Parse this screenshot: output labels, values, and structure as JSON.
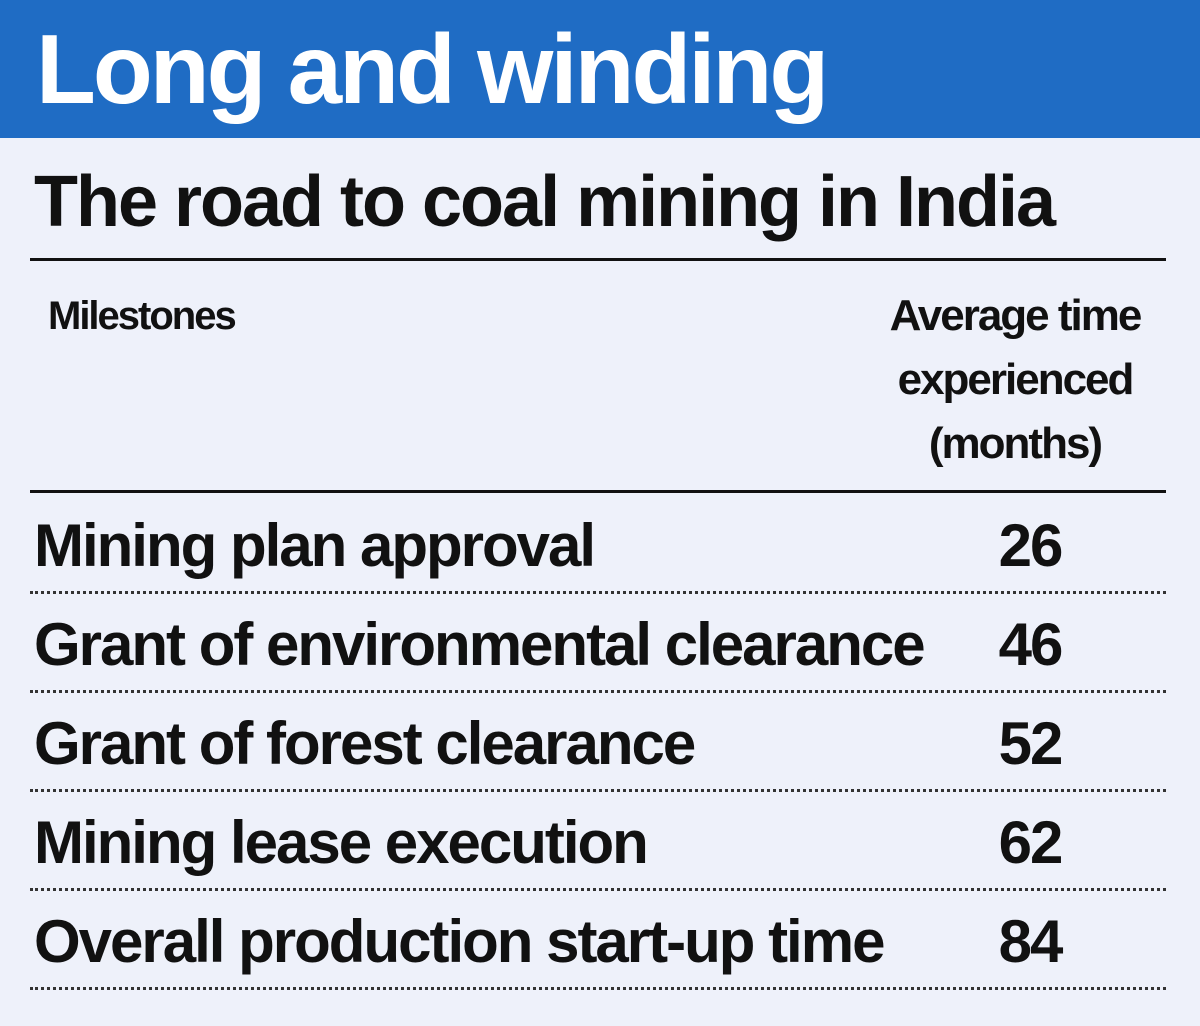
{
  "header": {
    "title": "Long and winding",
    "subtitle": "The road to coal mining in India"
  },
  "colors": {
    "header_band": "#1f6cc4",
    "background": "#eef1fa",
    "text": "#111111"
  },
  "chart_data": {
    "type": "table",
    "title": "Long and winding",
    "subtitle": "The road to coal mining in India",
    "columns": [
      "Milestones",
      "Average time experienced (months)"
    ],
    "column_header_lines": [
      "Average time",
      "experienced",
      "(months)"
    ],
    "rows": [
      {
        "milestone": "Mining plan approval",
        "months": 26
      },
      {
        "milestone": "Grant of environmental clearance",
        "months": 46
      },
      {
        "milestone": "Grant of forest clearance",
        "months": 52
      },
      {
        "milestone": "Mining lease execution",
        "months": 62
      },
      {
        "milestone": "Overall production start-up time",
        "months": 84
      }
    ]
  }
}
